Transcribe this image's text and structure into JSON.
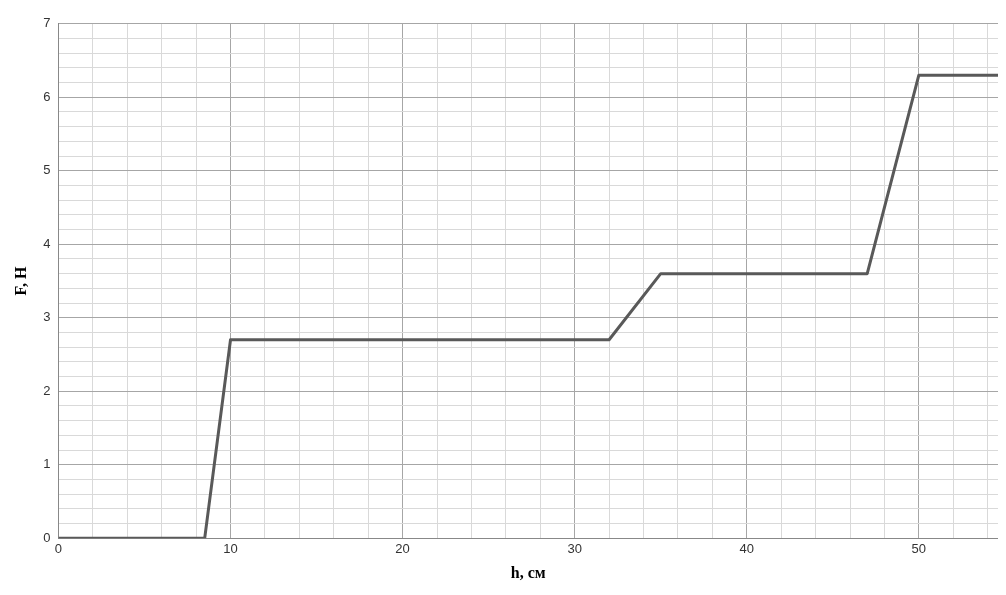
{
  "chart_data": {
    "type": "line",
    "xlabel": "h, см",
    "ylabel": "F, Н",
    "color": "#595959",
    "x": [
      0,
      8.5,
      10,
      32,
      35,
      47,
      50,
      54.6
    ],
    "values": [
      0,
      0,
      2.7,
      2.7,
      3.6,
      3.6,
      6.3,
      6.3
    ],
    "xlim": [
      0,
      54.6
    ],
    "ylim": [
      0,
      7
    ],
    "xticks": [
      0,
      {
        "value": 2,
        "label": null
      },
      {
        "value": 4,
        "label": null
      },
      {
        "value": 6,
        "label": null
      },
      {
        "value": 8,
        "label": null
      },
      10,
      {
        "value": 12,
        "label": null
      },
      {
        "value": 14,
        "label": null
      },
      {
        "value": 16,
        "label": null
      },
      {
        "value": 18,
        "label": null
      },
      20,
      {
        "value": 22,
        "label": null
      },
      {
        "value": 24,
        "label": null
      },
      {
        "value": 26,
        "label": null
      },
      {
        "value": 28,
        "label": null
      },
      30,
      {
        "value": 32,
        "label": null
      },
      {
        "value": 34,
        "label": null
      },
      {
        "value": 36,
        "label": null
      },
      {
        "value": 38,
        "label": null
      },
      40,
      {
        "value": 42,
        "label": null
      },
      {
        "value": 44,
        "label": null
      },
      {
        "value": 46,
        "label": null
      },
      {
        "value": 48,
        "label": null
      },
      50,
      {
        "value": 52,
        "label": null
      },
      {
        "value": 54,
        "label": null
      }
    ],
    "yticks": [
      0,
      {
        "value": 0.2,
        "label": null
      },
      {
        "value": 0.4,
        "label": null
      },
      {
        "value": 0.6,
        "label": null
      },
      {
        "value": 0.8,
        "label": null
      },
      1,
      {
        "value": 1.2,
        "label": null
      },
      {
        "value": 1.4,
        "label": null
      },
      {
        "value": 1.6,
        "label": null
      },
      {
        "value": 1.8,
        "label": null
      },
      2,
      {
        "value": 2.2,
        "label": null
      },
      {
        "value": 2.4,
        "label": null
      },
      {
        "value": 2.6,
        "label": null
      },
      {
        "value": 2.8,
        "label": null
      },
      3,
      {
        "value": 3.2,
        "label": null
      },
      {
        "value": 3.4,
        "label": null
      },
      {
        "value": 3.6,
        "label": null
      },
      {
        "value": 3.8,
        "label": null
      },
      4,
      {
        "value": 4.2,
        "label": null
      },
      {
        "value": 4.4,
        "label": null
      },
      {
        "value": 4.6,
        "label": null
      },
      {
        "value": 4.8,
        "label": null
      },
      5,
      {
        "value": 5.2,
        "label": null
      },
      {
        "value": 5.4,
        "label": null
      },
      {
        "value": 5.6,
        "label": null
      },
      {
        "value": 5.8,
        "label": null
      },
      6,
      {
        "value": 6.2,
        "label": null
      },
      {
        "value": 6.4,
        "label": null
      },
      {
        "value": 6.6,
        "label": null
      },
      {
        "value": 6.8,
        "label": null
      },
      7
    ],
    "grid": true,
    "marker": "none",
    "line_style": "solid",
    "legend": false
  }
}
